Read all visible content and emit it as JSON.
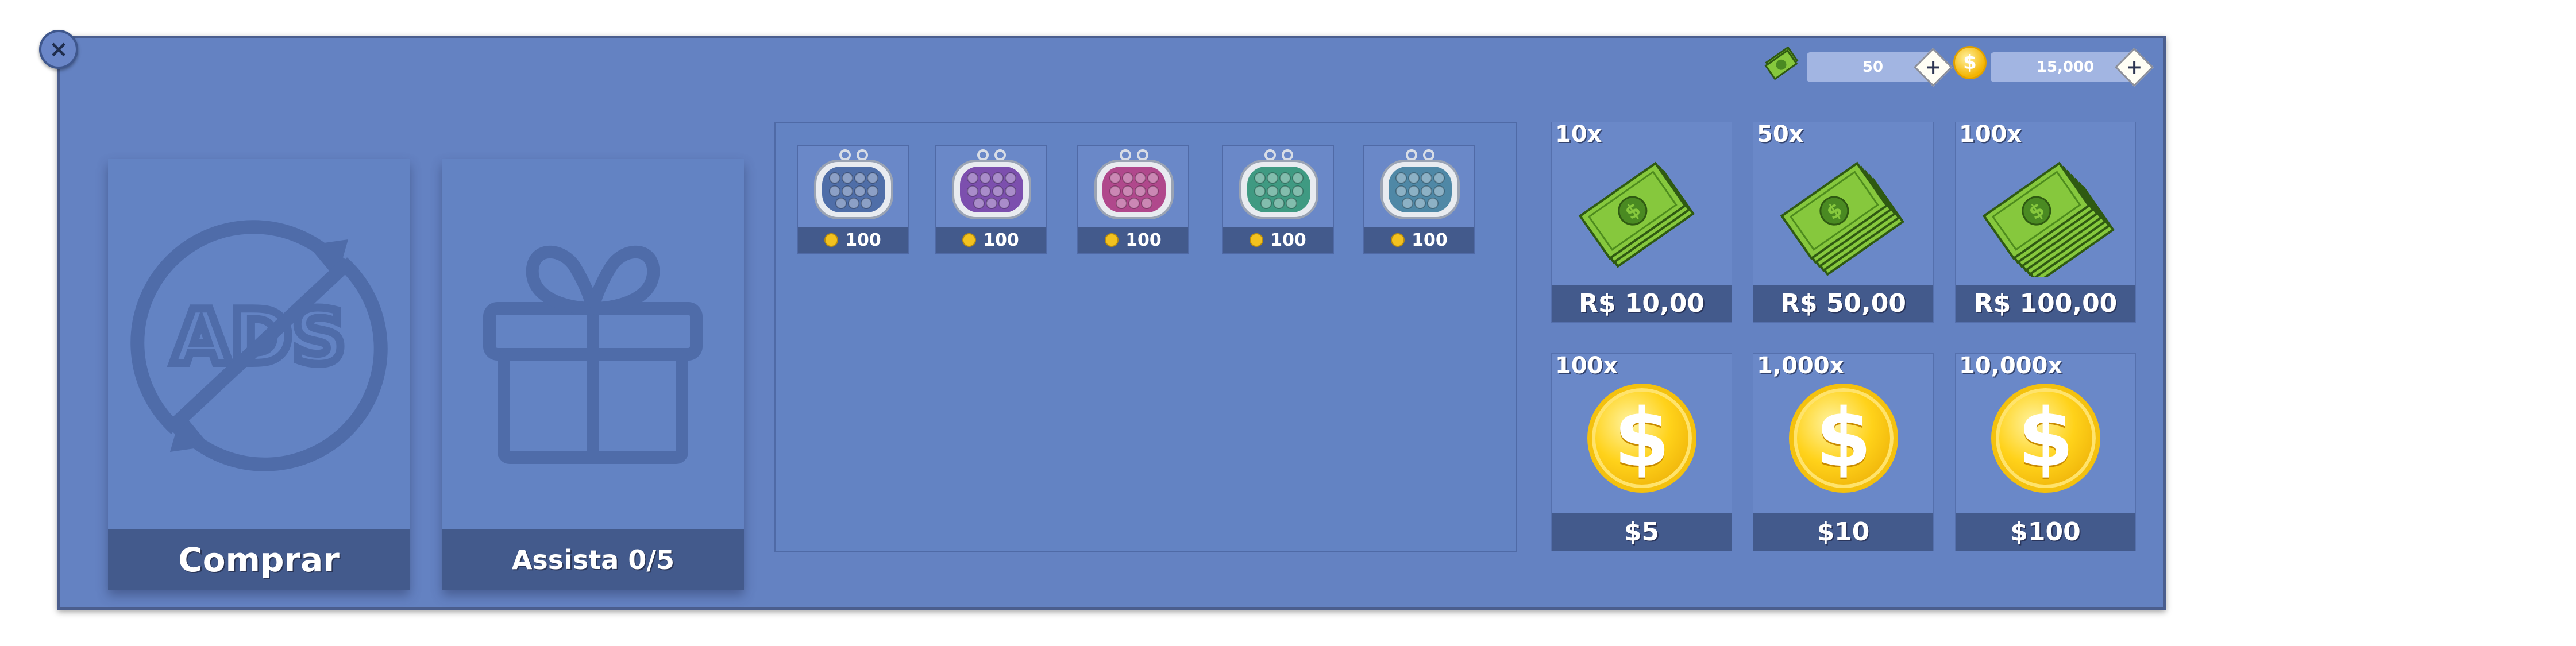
{
  "currencies": [
    {
      "name": "cash",
      "value": "50",
      "plus": "+"
    },
    {
      "name": "coins",
      "value": "15,000",
      "plus": "+"
    }
  ],
  "close": {
    "label": "×"
  },
  "cards": {
    "remove_ads": {
      "label": "Comprar",
      "icon_text": "ADS"
    },
    "gift": {
      "label": "Assista 0/5"
    }
  },
  "skins": [
    {
      "color": "#4f6ea8",
      "price": "100"
    },
    {
      "color": "#7c4fae",
      "price": "100"
    },
    {
      "color": "#b0488c",
      "price": "100"
    },
    {
      "color": "#3f9a82",
      "price": "100"
    },
    {
      "color": "#4f88a6",
      "price": "100"
    }
  ],
  "cash_packs": [
    {
      "qty": "10x",
      "price": "R$ 10,00",
      "stacks": 1
    },
    {
      "qty": "50x",
      "price": "R$ 50,00",
      "stacks": 2
    },
    {
      "qty": "100x",
      "price": "R$ 100,00",
      "stacks": 3
    }
  ],
  "coin_packs": [
    {
      "qty": "100x",
      "price": "$5",
      "symbol": "$"
    },
    {
      "qty": "1,000x",
      "price": "$10",
      "symbol": "$"
    },
    {
      "qty": "10,000x",
      "price": "$100",
      "symbol": "$"
    }
  ],
  "colors": {
    "panel": "#6482c2",
    "bar": "#435a8c",
    "coin": "#ffd21a",
    "cash": "#7fc23a"
  }
}
